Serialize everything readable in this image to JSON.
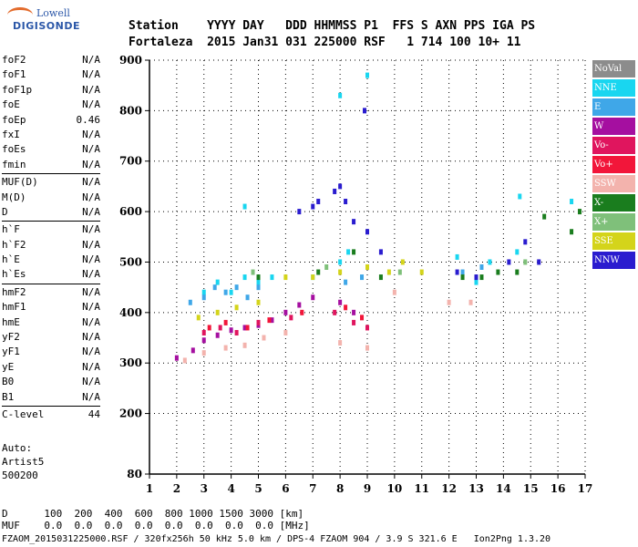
{
  "logo": {
    "line1": "Lowell",
    "line2": "DIGISONDE"
  },
  "header": {
    "row1": "Station    YYYY DAY   DDD HHMMSS P1  FFS S AXN PPS IGA PS",
    "row2": "Fortaleza  2015 Jan31 031 225000 RSF   1 714 100 10+ 11"
  },
  "params": [
    {
      "name": "foF2",
      "value": "N/A"
    },
    {
      "name": "foF1",
      "value": "N/A"
    },
    {
      "name": "foF1p",
      "value": "N/A"
    },
    {
      "name": "foE",
      "value": "N/A"
    },
    {
      "name": "foEp",
      "value": "0.46"
    },
    {
      "name": "fxI",
      "value": "N/A"
    },
    {
      "name": "foEs",
      "value": "N/A"
    },
    {
      "name": "fmin",
      "value": "N/A"
    },
    {
      "sep": true
    },
    {
      "name": "MUF(D)",
      "value": "N/A"
    },
    {
      "name": "M(D)",
      "value": "N/A"
    },
    {
      "name": "D",
      "value": "N/A"
    },
    {
      "sep": true
    },
    {
      "name": "h`F",
      "value": "N/A"
    },
    {
      "name": "h`F2",
      "value": "N/A"
    },
    {
      "name": "h`E",
      "value": "N/A"
    },
    {
      "name": "h`Es",
      "value": "N/A"
    },
    {
      "sep": true
    },
    {
      "name": "hmF2",
      "value": "N/A"
    },
    {
      "name": "hmF1",
      "value": "N/A"
    },
    {
      "name": "hmE",
      "value": "N/A"
    },
    {
      "name": "yF2",
      "value": "N/A"
    },
    {
      "name": "yF1",
      "value": "N/A"
    },
    {
      "name": "yE",
      "value": "N/A"
    },
    {
      "name": "B0",
      "value": "N/A"
    },
    {
      "name": "B1",
      "value": "N/A"
    },
    {
      "sep": true
    },
    {
      "name": "C-level",
      "value": "44"
    }
  ],
  "autoscale": {
    "line1": "Auto:",
    "line2": "Artist5",
    "line3": "500200"
  },
  "legend": [
    {
      "label": "NoVal",
      "color": "#8c8c8c"
    },
    {
      "label": "NNE",
      "color": "#19d6f0"
    },
    {
      "label": "E",
      "color": "#3fa7e8"
    },
    {
      "label": "W",
      "color": "#a50fa0"
    },
    {
      "label": "Vo-",
      "color": "#e0155e"
    },
    {
      "label": "Vo+",
      "color": "#f2163a"
    },
    {
      "label": "SSW",
      "color": "#f3b3ad"
    },
    {
      "label": "X-",
      "color": "#1a7d1e"
    },
    {
      "label": "X+",
      "color": "#7fc07a"
    },
    {
      "label": "SSE",
      "color": "#d4d41a"
    },
    {
      "label": "NNW",
      "color": "#2a1ccf"
    }
  ],
  "chart_data": {
    "type": "scatter",
    "title": "",
    "xlabel": "",
    "ylabel": "",
    "xlim": [
      1,
      17
    ],
    "ylim": [
      80,
      900
    ],
    "xticks": [
      1,
      2,
      3,
      4,
      5,
      6,
      7,
      8,
      9,
      10,
      11,
      12,
      13,
      14,
      15,
      16,
      17
    ],
    "yticks": [
      80,
      200,
      300,
      400,
      500,
      600,
      700,
      800,
      900
    ],
    "grid": true,
    "series": [
      {
        "name": "NNE",
        "points": [
          [
            3.0,
            440
          ],
          [
            3.5,
            460
          ],
          [
            4.0,
            440
          ],
          [
            4.5,
            470
          ],
          [
            4.5,
            610
          ],
          [
            5.0,
            460
          ],
          [
            5.5,
            470
          ],
          [
            7.0,
            470
          ],
          [
            8.0,
            500
          ],
          [
            8.3,
            520
          ],
          [
            8.0,
            830
          ],
          [
            9.0,
            870
          ],
          [
            12.3,
            510
          ],
          [
            13.0,
            460
          ],
          [
            13.5,
            500
          ],
          [
            14.5,
            520
          ],
          [
            14.6,
            630
          ],
          [
            16.5,
            620
          ]
        ]
      },
      {
        "name": "E",
        "points": [
          [
            2.5,
            420
          ],
          [
            3.0,
            430
          ],
          [
            3.4,
            450
          ],
          [
            3.8,
            440
          ],
          [
            4.2,
            450
          ],
          [
            4.6,
            430
          ],
          [
            5.0,
            450
          ],
          [
            8.2,
            460
          ],
          [
            8.8,
            470
          ],
          [
            12.5,
            480
          ],
          [
            13.2,
            490
          ]
        ]
      },
      {
        "name": "W",
        "points": [
          [
            2.0,
            310
          ],
          [
            2.6,
            325
          ],
          [
            3.0,
            345
          ],
          [
            3.5,
            355
          ],
          [
            4.0,
            365
          ],
          [
            4.5,
            370
          ],
          [
            5.0,
            375
          ],
          [
            5.5,
            385
          ],
          [
            6.0,
            400
          ],
          [
            6.5,
            415
          ],
          [
            7.0,
            430
          ],
          [
            8.0,
            420
          ],
          [
            8.5,
            400
          ]
        ]
      },
      {
        "name": "Vo-",
        "points": [
          [
            3.0,
            360
          ],
          [
            3.6,
            370
          ],
          [
            4.2,
            360
          ],
          [
            5.0,
            380
          ],
          [
            6.2,
            390
          ],
          [
            7.8,
            400
          ],
          [
            8.5,
            380
          ],
          [
            9.0,
            370
          ]
        ]
      },
      {
        "name": "Vo+",
        "points": [
          [
            3.2,
            370
          ],
          [
            3.8,
            380
          ],
          [
            4.6,
            370
          ],
          [
            5.4,
            385
          ],
          [
            6.6,
            400
          ],
          [
            8.2,
            410
          ],
          [
            8.8,
            390
          ]
        ]
      },
      {
        "name": "SSW",
        "points": [
          [
            2.3,
            305
          ],
          [
            3.0,
            320
          ],
          [
            3.8,
            330
          ],
          [
            4.5,
            335
          ],
          [
            5.2,
            350
          ],
          [
            6.0,
            360
          ],
          [
            8.0,
            340
          ],
          [
            9.0,
            330
          ],
          [
            10.0,
            440
          ],
          [
            12.0,
            420
          ],
          [
            12.8,
            420
          ]
        ]
      },
      {
        "name": "X-",
        "points": [
          [
            5.0,
            470
          ],
          [
            7.2,
            480
          ],
          [
            8.5,
            520
          ],
          [
            9.5,
            470
          ],
          [
            12.5,
            470
          ],
          [
            13.2,
            470
          ],
          [
            13.8,
            480
          ],
          [
            14.5,
            480
          ],
          [
            15.5,
            590
          ],
          [
            16.5,
            560
          ],
          [
            16.8,
            600
          ]
        ]
      },
      {
        "name": "X+",
        "points": [
          [
            4.8,
            480
          ],
          [
            7.5,
            490
          ],
          [
            10.2,
            480
          ],
          [
            14.8,
            500
          ]
        ]
      },
      {
        "name": "SSE",
        "points": [
          [
            2.8,
            390
          ],
          [
            3.5,
            400
          ],
          [
            4.2,
            410
          ],
          [
            5.0,
            420
          ],
          [
            6.0,
            470
          ],
          [
            7.0,
            470
          ],
          [
            8.0,
            480
          ],
          [
            9.0,
            490
          ],
          [
            9.8,
            480
          ],
          [
            10.3,
            500
          ],
          [
            11.0,
            480
          ]
        ]
      },
      {
        "name": "NNW",
        "points": [
          [
            6.5,
            600
          ],
          [
            7.0,
            610
          ],
          [
            7.2,
            620
          ],
          [
            7.8,
            640
          ],
          [
            8.0,
            650
          ],
          [
            8.2,
            620
          ],
          [
            8.5,
            580
          ],
          [
            9.0,
            560
          ],
          [
            9.5,
            520
          ],
          [
            12.3,
            480
          ],
          [
            13.0,
            470
          ],
          [
            14.2,
            500
          ],
          [
            14.8,
            540
          ],
          [
            15.3,
            500
          ],
          [
            8.9,
            800
          ]
        ]
      }
    ]
  },
  "bottom": {
    "row1": "D      100  200  400  600  800 1000 1500 3000 [km]",
    "row2": "MUF    0.0  0.0  0.0  0.0  0.0  0.0  0.0  0.0 [MHz]",
    "footer": "FZAOM_2015031225000.RSF / 320fx256h 50 kHz 5.0 km / DPS-4 FZAOM 904 / 3.9 S 321.6 E   Ion2Png 1.3.20"
  }
}
